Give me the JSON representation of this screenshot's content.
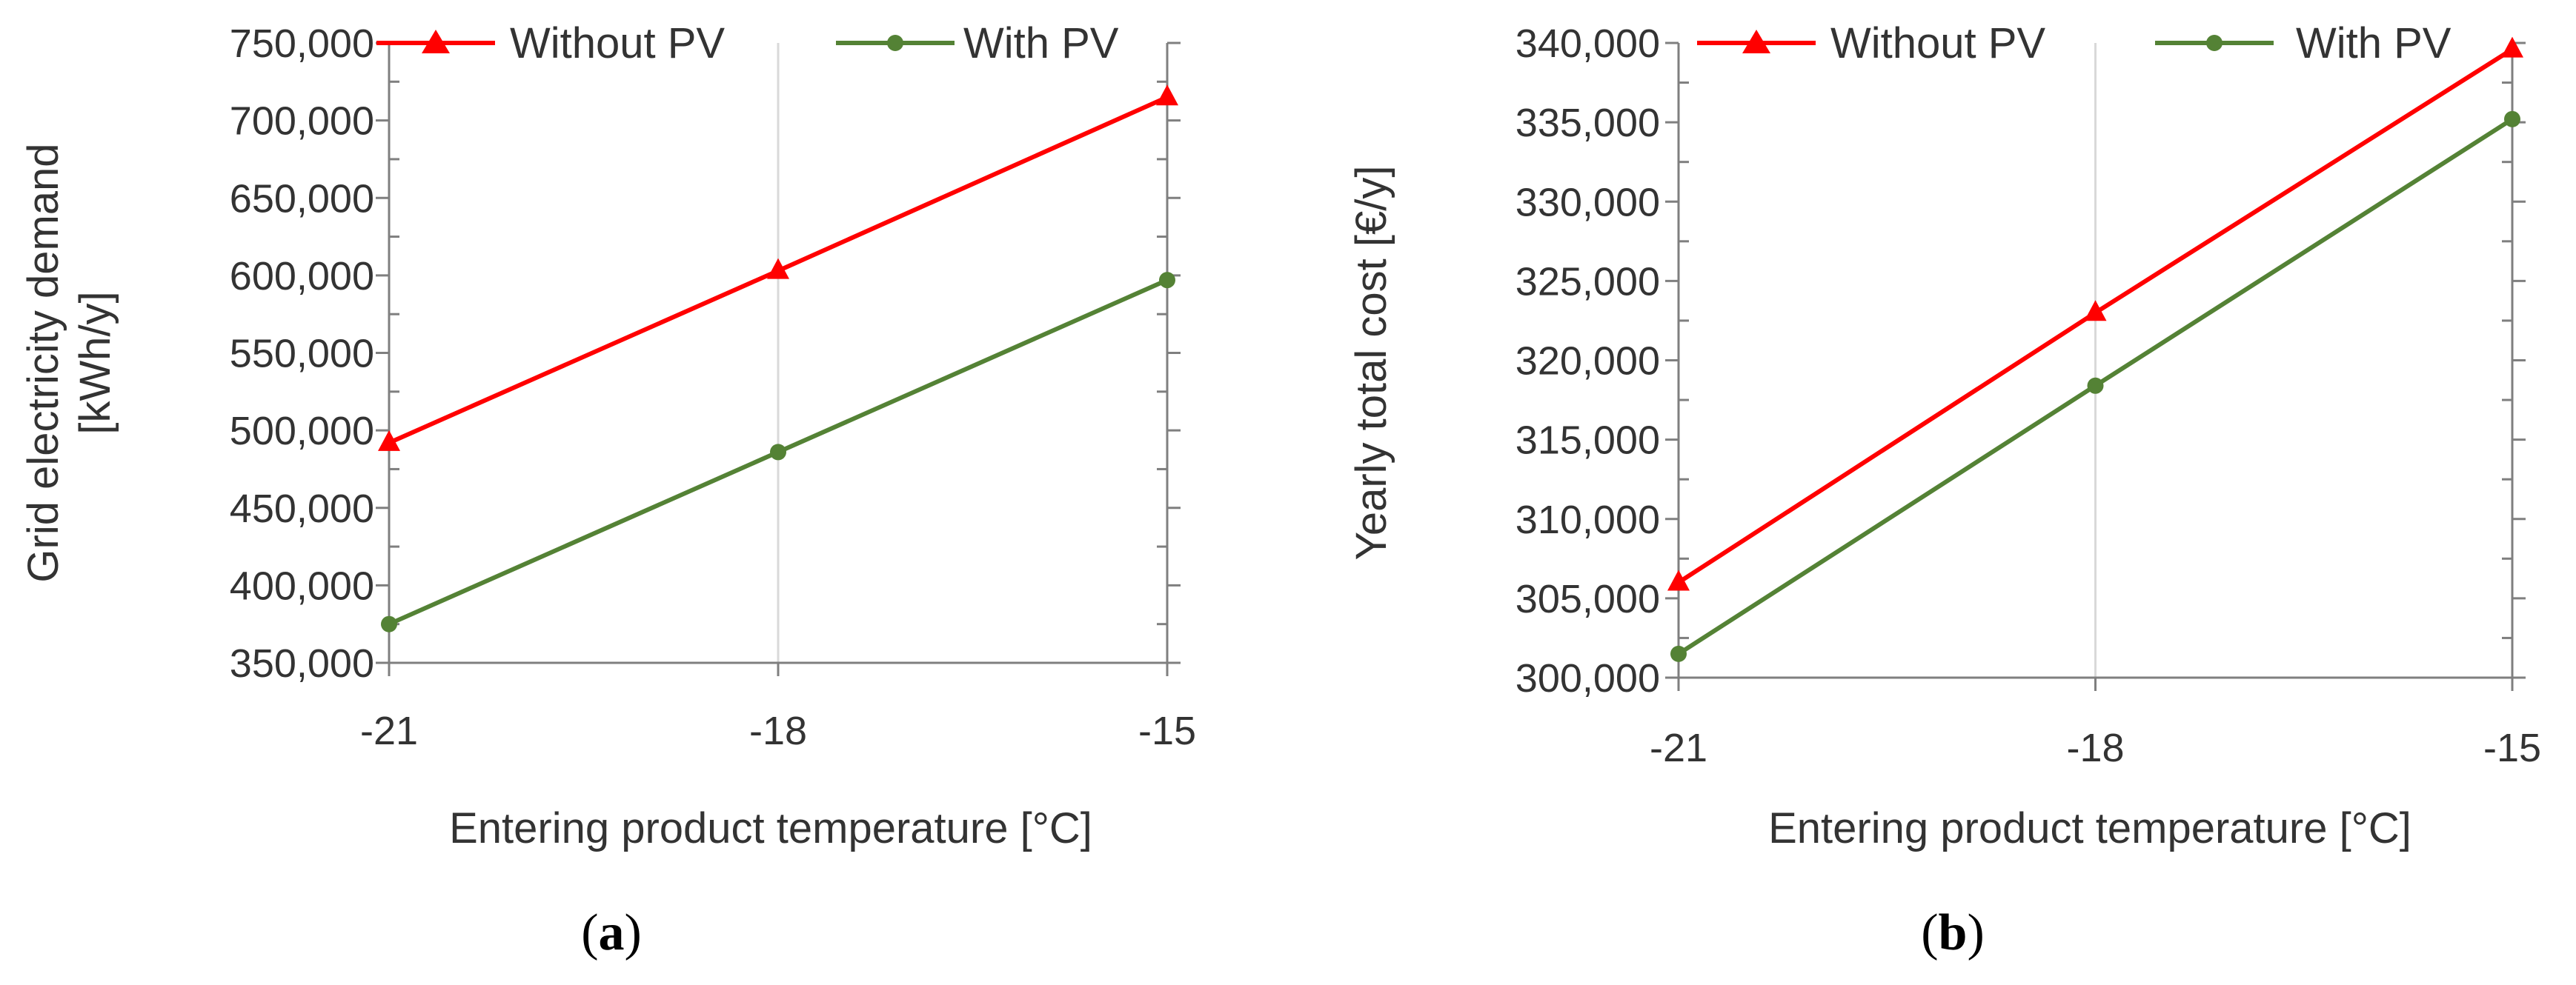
{
  "chart_data": [
    {
      "type": "line",
      "panel": "a",
      "x": [
        -21,
        -18,
        -15
      ],
      "x_tick_labels": [
        "-21",
        "-18",
        "-15"
      ],
      "xlabel": "Entering product temperature [°C]",
      "ylabel_line1": "Grid electricity demand",
      "ylabel_line2": "[kWh/y]",
      "ylim": [
        350000,
        750000
      ],
      "y_ticks": [
        350000,
        400000,
        450000,
        500000,
        550000,
        600000,
        650000,
        700000,
        750000
      ],
      "y_tick_labels": [
        "350,000",
        "400,000",
        "450,000",
        "500,000",
        "550,000",
        "600,000",
        "650,000",
        "700,000",
        "750,000"
      ],
      "grid": true,
      "legend_position": "top",
      "series": [
        {
          "name": "Without PV",
          "color": "#ff0000",
          "marker": "triangle",
          "values": [
            492000,
            603000,
            715000
          ]
        },
        {
          "name": "With PV",
          "color": "#548235",
          "marker": "circle",
          "values": [
            375000,
            486000,
            597000
          ]
        }
      ]
    },
    {
      "type": "line",
      "panel": "b",
      "x": [
        -21,
        -18,
        -15
      ],
      "x_tick_labels": [
        "-21",
        "-18",
        "-15"
      ],
      "xlabel": "Entering product temperature [°C]",
      "ylabel": "Yearly total cost [€/y]",
      "ylim": [
        300000,
        340000
      ],
      "y_ticks": [
        300000,
        305000,
        310000,
        315000,
        320000,
        325000,
        330000,
        335000,
        340000
      ],
      "y_tick_labels": [
        "300,000",
        "305,000",
        "310,000",
        "315,000",
        "320,000",
        "325,000",
        "330,000",
        "335,000",
        "340,000"
      ],
      "grid": true,
      "legend_position": "top",
      "series": [
        {
          "name": "Without PV",
          "color": "#ff0000",
          "marker": "triangle",
          "values": [
            306000,
            323000,
            339600
          ]
        },
        {
          "name": "With PV",
          "color": "#548235",
          "marker": "circle",
          "values": [
            301500,
            318400,
            335200
          ]
        }
      ]
    }
  ],
  "captions": {
    "a_open": "(",
    "a_letter": "a",
    "a_close": ")",
    "b_open": "(",
    "b_letter": "b",
    "b_close": ")"
  }
}
